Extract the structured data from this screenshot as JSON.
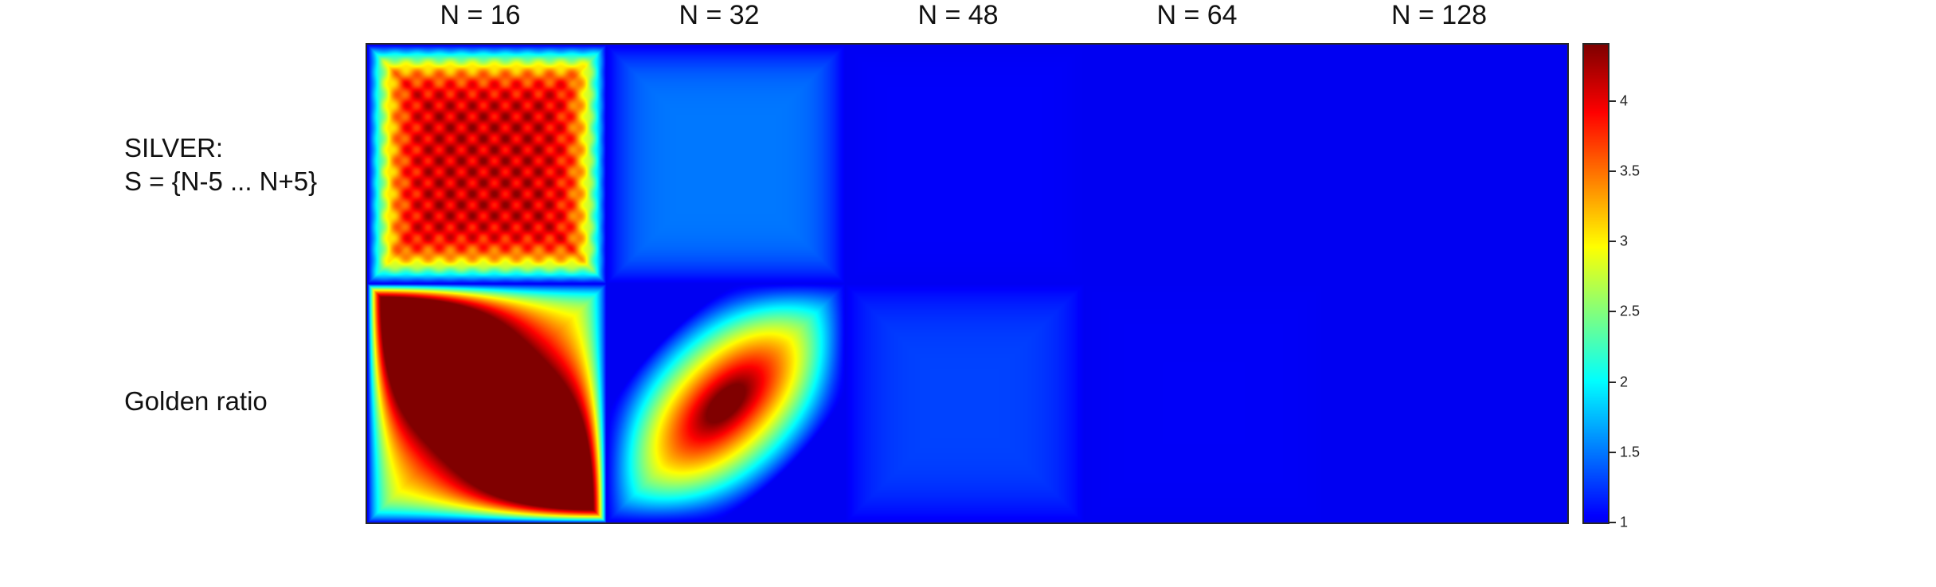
{
  "chart_data": {
    "type": "heatmap",
    "title": "",
    "xlabel": "",
    "ylabel": "",
    "columns": [
      "N = 16",
      "N = 32",
      "N = 48",
      "N = 64",
      "N = 128"
    ],
    "rows": [
      {
        "label_lines": [
          "SILVER:",
          "S = {N-5 ... N+5}"
        ]
      },
      {
        "label_lines": [
          "Golden ratio"
        ]
      }
    ],
    "colormap": "jet",
    "clim": [
      1,
      4.4
    ],
    "colorbar_ticks": [
      "1",
      "1.5",
      "2",
      "2.5",
      "3",
      "3.5",
      "4"
    ],
    "colorbar_tick_values": [
      1,
      1.5,
      2,
      2.5,
      3,
      3.5,
      4
    ],
    "panel_peak_values": [
      [
        4.2,
        1.5,
        1.03,
        1.0,
        1.0
      ],
      [
        4.4,
        4.4,
        1.3,
        1.02,
        1.0
      ]
    ]
  }
}
